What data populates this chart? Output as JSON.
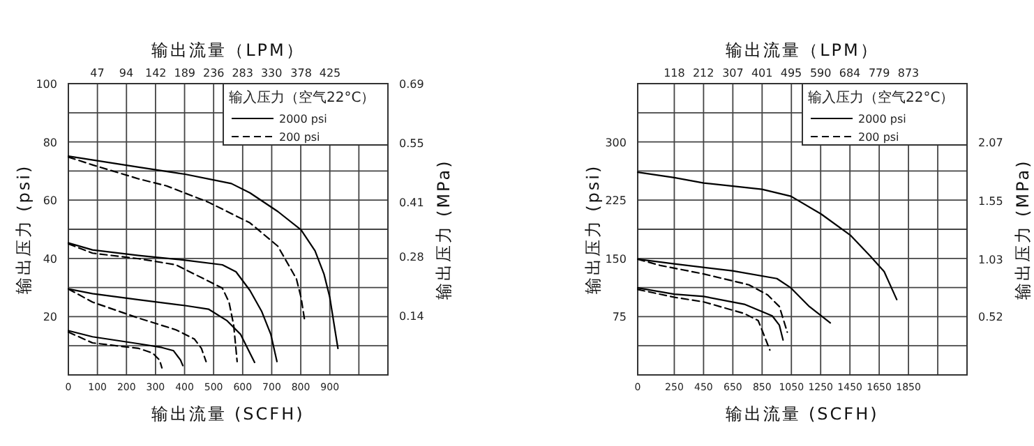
{
  "chart_data": [
    {
      "type": "line",
      "xlabel": "输出流量 (SCFH)",
      "x2label": "输出流量（LPM）",
      "ylabel": "输出压力 (psi)",
      "y2label": "输出压力 (MPa)",
      "legend_title": "输入压力（空气22°C）",
      "legend": "top right",
      "grid": true,
      "xlim": [
        0,
        1100
      ],
      "xticks": [
        0,
        100,
        200,
        300,
        400,
        500,
        600,
        700,
        800,
        900,
        {
          "value": 1000,
          "label": null
        }
      ],
      "x2lim": [
        0,
        519
      ],
      "x2ticks": [
        47,
        94,
        142,
        189,
        236,
        283,
        330,
        378,
        425
      ],
      "ylim": [
        0,
        100
      ],
      "yticks": [
        {
          "value": 10,
          "label": null
        },
        20,
        {
          "value": 30,
          "label": null
        },
        40,
        {
          "value": 50,
          "label": null
        },
        60,
        {
          "value": 70,
          "label": null
        },
        80,
        {
          "value": 90,
          "label": null
        },
        100
      ],
      "y2lim": [
        0,
        0.69
      ],
      "y2ticks": [
        0.14,
        0.28,
        0.41,
        0.55,
        0.69
      ],
      "series": [
        {
          "name": "2000 psi",
          "color": "#000000",
          "line_style": "solid",
          "x": [
            0,
            242,
            402,
            561,
            625,
            721,
            801,
            849,
            880,
            900,
            915,
            928
          ],
          "values": [
            75.1,
            71.3,
            68.9,
            65.7,
            62.5,
            56.1,
            49.8,
            42.6,
            34.6,
            26.6,
            17.1,
            9.1
          ]
        },
        {
          "name": "200 psi",
          "color": "#000000",
          "line_style": "dashed",
          "x": [
            0,
            83,
            242,
            338,
            482,
            625,
            721,
            785,
            801,
            814
          ],
          "values": [
            74.8,
            72.1,
            67.3,
            64.9,
            59.3,
            52.2,
            44.2,
            33.0,
            26.6,
            18.3
          ]
        },
        {
          "color": "#000000",
          "line_style": "solid",
          "x": [
            0,
            83,
            242,
            402,
            530,
            577,
            625,
            665,
            697,
            718
          ],
          "values": [
            45.3,
            42.9,
            41.0,
            39.4,
            37.8,
            35.4,
            29.0,
            21.9,
            13.9,
            4.6
          ]
        },
        {
          "color": "#000000",
          "line_style": "dashed",
          "x": [
            0,
            83,
            242,
            370,
            466,
            530,
            553,
            569,
            581
          ],
          "values": [
            45.0,
            41.8,
            39.9,
            37.8,
            33.0,
            29.8,
            25.0,
            17.1,
            4.6
          ]
        },
        {
          "color": "#000000",
          "line_style": "solid",
          "x": [
            0,
            83,
            242,
            402,
            482,
            545,
            593,
            641
          ],
          "values": [
            29.5,
            27.9,
            25.8,
            23.8,
            22.6,
            18.7,
            13.9,
            4.3
          ]
        },
        {
          "color": "#000000",
          "line_style": "dashed",
          "x": [
            0,
            83,
            242,
            370,
            434,
            458,
            474
          ],
          "values": [
            29.5,
            25.0,
            19.5,
            15.5,
            12.3,
            9.1,
            4.6
          ]
        },
        {
          "color": "#000000",
          "line_style": "solid",
          "x": [
            0,
            83,
            242,
            322,
            362,
            386,
            394
          ],
          "values": [
            15.2,
            13.1,
            10.7,
            9.4,
            8.3,
            5.1,
            3.2
          ]
        },
        {
          "color": "#000000",
          "line_style": "dashed",
          "x": [
            0,
            83,
            242,
            290,
            314,
            322
          ],
          "values": [
            14.7,
            11.0,
            9.1,
            7.5,
            5.1,
            2.4
          ]
        }
      ]
    },
    {
      "type": "line",
      "xlabel": "输出流量 (SCFH)",
      "x2label": "输出流量（LPM）",
      "ylabel": "输出压力 (psi)",
      "y2label": "输出压力 (MPa)",
      "legend_title": "输入压力（空气22°C）",
      "legend": "top right",
      "grid": true,
      "xlim": [
        0,
        2250
      ],
      "xticks": [
        0,
        250,
        450,
        650,
        850,
        1050,
        1250,
        1450,
        1650,
        1850,
        {
          "value": 2050,
          "label": null
        }
      ],
      "x2lim": [
        0,
        1062
      ],
      "x2ticks": [
        118,
        212,
        307,
        401,
        495,
        590,
        684,
        779,
        873
      ],
      "ylim": [
        0,
        375
      ],
      "yticks": [
        {
          "value": 37.5,
          "label": null
        },
        75,
        {
          "value": 112.5,
          "label": null
        },
        150,
        {
          "value": 187.5,
          "label": null
        },
        225,
        {
          "value": 262.5,
          "label": null
        },
        300,
        {
          "value": 337.5,
          "label": null
        }
      ],
      "y2lim": [
        0,
        2.59
      ],
      "y2ticks": [
        0.52,
        1.03,
        1.55,
        2.07
      ],
      "series": [
        {
          "name": "2000 psi",
          "color": "#000000",
          "line_style": "solid",
          "x": [
            0,
            250,
            451,
            652,
            849,
            1047,
            1254,
            1452,
            1589,
            1684,
            1770
          ],
          "values": [
            261,
            254,
            247,
            243,
            239,
            230,
            207,
            180,
            153,
            133,
            97
          ]
        },
        {
          "name": "200 psi",
          "color": "#000000",
          "line_style": "dashed",
          "x": [
            0,
            154,
            451,
            760,
            888,
            968,
            1022
          ],
          "values": [
            149,
            141,
            130,
            116,
            103,
            88,
            55
          ]
        },
        {
          "color": "#000000",
          "line_style": "solid",
          "x": [
            0,
            250,
            648,
            951,
            1047,
            1173,
            1316
          ],
          "values": [
            149,
            143,
            134,
            124,
            112,
            88,
            67
          ]
        },
        {
          "color": "#000000",
          "line_style": "solid",
          "x": [
            0,
            250,
            451,
            728,
            919,
            968,
            993
          ],
          "values": [
            112,
            104,
            101,
            91,
            76,
            64,
            45
          ]
        },
        {
          "color": "#000000",
          "line_style": "dashed",
          "x": [
            0,
            250,
            451,
            728,
            823,
            855,
            903
          ],
          "values": [
            110,
            100,
            94,
            79,
            70,
            55,
            32
          ]
        }
      ]
    }
  ]
}
